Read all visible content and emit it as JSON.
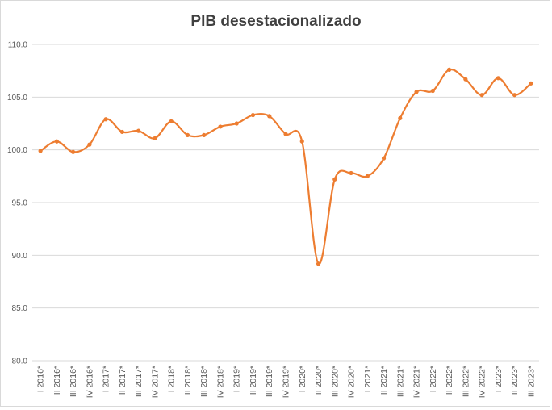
{
  "chart_data": {
    "type": "line",
    "title": "PIB desestacionalizado",
    "xlabel": "",
    "ylabel": "",
    "ylim": [
      80,
      110
    ],
    "yticks": [
      "80.0",
      "85.0",
      "90.0",
      "95.0",
      "100.0",
      "105.0",
      "110.0"
    ],
    "grid": "horizontal",
    "legend": "none",
    "line_color": "#ED7D31",
    "categories": [
      "I 2016*",
      "II 2016*",
      "III 2016*",
      "IV 2016*",
      "I 2017*",
      "II 2017*",
      "III 2017*",
      "IV 2017*",
      "I 2018*",
      "II 2018*",
      "III 2018*",
      "IV 2018*",
      "I 2019*",
      "II 2019*",
      "III 2019*",
      "IV 2019*",
      "I 2020*",
      "II 2020*",
      "III 2020*",
      "IV 2020*",
      "I 2021*",
      "II 2021*",
      "III 2021*",
      "IV 2021*",
      "I 2022*",
      "II 2022*",
      "III 2022*",
      "IV 2022*",
      "I 2023*",
      "II 2023*",
      "III 2023*"
    ],
    "series": [
      {
        "values": [
          99.9,
          100.8,
          99.8,
          100.5,
          102.9,
          101.7,
          101.8,
          101.1,
          102.7,
          101.4,
          101.4,
          102.2,
          102.5,
          103.3,
          103.2,
          101.5,
          100.8,
          89.2,
          97.2,
          97.8,
          97.5,
          99.2,
          103.0,
          105.5,
          105.6,
          107.6,
          106.7,
          105.2,
          106.8,
          105.2,
          106.3
        ]
      }
    ]
  }
}
